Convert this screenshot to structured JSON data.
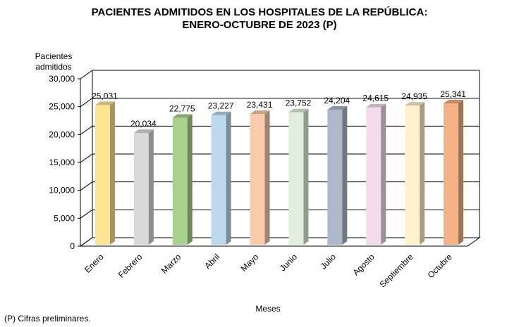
{
  "chart_data": {
    "type": "bar",
    "title": "PACIENTES ADMITIDOS EN LOS HOSPITALES DE LA REPÚBLICA:",
    "subtitle": "ENERO-OCTUBRE DE 2023 (P)",
    "ylabel": "Pacientes admitidos",
    "xlabel": "Meses",
    "categories": [
      "Enero",
      "Febrero",
      "Marzo",
      "Abril",
      "Mayo",
      "Junio",
      "Julio",
      "Agosto",
      "Septiembre",
      "Octubre"
    ],
    "values": [
      25031,
      20034,
      22775,
      23227,
      23431,
      23752,
      24204,
      24615,
      24935,
      25341
    ],
    "data_labels": [
      "25,031",
      "20,034",
      "22,775",
      "23,227",
      "23,431",
      "23,752",
      "24,204",
      "24,615",
      "24,935",
      "25,341"
    ],
    "ylim": [
      0,
      30000
    ],
    "yticks": [
      "0",
      "5,000",
      "10,000",
      "15,000",
      "20,000",
      "25,000",
      "30,000"
    ],
    "grid": true,
    "style": "3d",
    "colors": [
      "#fde594",
      "#d9d9d9",
      "#a9d18e",
      "#bdd7ee",
      "#f8cbad",
      "#e2efda",
      "#adb9ca",
      "#f2dcec",
      "#fff2cc",
      "#f4b183"
    ],
    "note": "(P) Cifras  preliminares."
  }
}
